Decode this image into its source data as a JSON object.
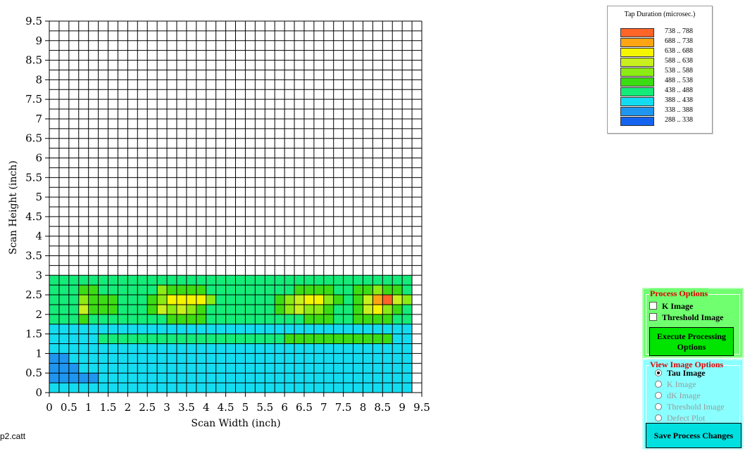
{
  "chart_data": {
    "type": "heatmap",
    "xlabel": "Scan Width (inch)",
    "ylabel": "Scan Height (inch)",
    "xlim": [
      0,
      9.5
    ],
    "ylim": [
      0,
      9.5
    ],
    "cell_size_inch": 0.25,
    "x_ticks": [
      "0",
      "0.5",
      "1",
      "1.5",
      "2",
      "2.5",
      "3",
      "3.5",
      "4",
      "4.5",
      "5",
      "5.5",
      "6",
      "6.5",
      "7",
      "7.5",
      "8",
      "8.5",
      "9",
      "9.5"
    ],
    "y_ticks": [
      "0",
      "0.5",
      "1",
      "1.5",
      "2",
      "2.5",
      "3",
      "3.5",
      "4",
      "4.5",
      "5",
      "5.5",
      "6",
      "6.5",
      "7",
      "7.5",
      "8",
      "8.5",
      "9",
      "9.5"
    ],
    "grid": true,
    "rows_bottom_up": [
      "2222222222222222222222222222222222222",
      "1111122222222222222222222222222222222",
      "1112222222222222222222222222222222222",
      "1122222222222222222222222222222222222",
      "2222222222222222222222222222222222222",
      "2222233333333333333333334444444444422",
      "2222222222222222222222222222222222222",
      "3334333333334444333333333344433444433",
      "3336444333465654333333345655433467543",
      "3335444333457777533333345677543468965",
      "3334433333354444333333333444433445443",
      "3333333333333333333333333333333333333"
    ],
    "color_classes": [
      {
        "range": "288 .. 338",
        "color": "#1464f0"
      },
      {
        "range": "338 .. 388",
        "color": "#1e96f0"
      },
      {
        "range": "388 .. 438",
        "color": "#14dcf0"
      },
      {
        "range": "438 .. 488",
        "color": "#14eb78"
      },
      {
        "range": "488 .. 538",
        "color": "#3cdc14"
      },
      {
        "range": "538 .. 588",
        "color": "#8ceb14"
      },
      {
        "range": "588 .. 638",
        "color": "#c8f01e"
      },
      {
        "range": "638 .. 688",
        "color": "#f5f500"
      },
      {
        "range": "688 .. 738",
        "color": "#ffa514"
      },
      {
        "range": "738 .. 788",
        "color": "#ff6428"
      }
    ]
  },
  "legend": {
    "title": "Tap Duration (microsec.)",
    "entries": [
      {
        "label": "738 .. 788",
        "color": "#ff6428"
      },
      {
        "label": "688 .. 738",
        "color": "#ffa514"
      },
      {
        "label": "638 .. 688",
        "color": "#f5f500"
      },
      {
        "label": "588 .. 638",
        "color": "#c8f01e"
      },
      {
        "label": "538 .. 588",
        "color": "#8ceb14"
      },
      {
        "label": "488 .. 538",
        "color": "#3cdc14"
      },
      {
        "label": "438 .. 488",
        "color": "#14eb78"
      },
      {
        "label": "388 .. 438",
        "color": "#14dcf0"
      },
      {
        "label": "338 .. 388",
        "color": "#1e96f0"
      },
      {
        "label": "288 .. 338",
        "color": "#1464f0"
      }
    ]
  },
  "process_options": {
    "title": "Process Options",
    "k_image_label": "K Image",
    "k_image_checked": false,
    "threshold_image_label": "Threshold Image",
    "threshold_image_checked": false,
    "execute_label": "Execute Processing Options"
  },
  "view_options": {
    "title": "View Image Options",
    "options": [
      {
        "label": "Tau Image",
        "selected": true,
        "enabled": true
      },
      {
        "label": "K Image",
        "selected": false,
        "enabled": false
      },
      {
        "label": "dK Image",
        "selected": false,
        "enabled": false
      },
      {
        "label": "Threshold Image",
        "selected": false,
        "enabled": false
      },
      {
        "label": "Defect Plot",
        "selected": false,
        "enabled": false
      }
    ],
    "save_label": "Save Process Changes"
  },
  "filename": "p2.catt"
}
